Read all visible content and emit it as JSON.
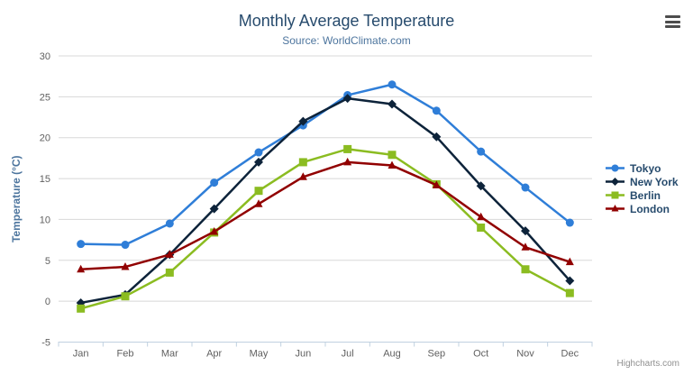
{
  "export_menu": {
    "tooltip": "Chart context menu"
  },
  "credits": {
    "label": "Highcharts.com"
  },
  "colors": {
    "title": "#274b6d",
    "subtitle": "#4d759e",
    "axis_title": "#4d759e",
    "axis_labels": "#606060",
    "grid_line": "#d8d8d8",
    "axis_line": "#c0d0e0",
    "legend_text": "#274b6d",
    "credits_text": "#909090",
    "export_icon": "#4d4d4d"
  },
  "chart_data": {
    "type": "line",
    "title": "Monthly Average Temperature",
    "subtitle": "Source: WorldClimate.com",
    "xlabel": "",
    "ylabel": "Temperature (°C)",
    "categories": [
      "Jan",
      "Feb",
      "Mar",
      "Apr",
      "May",
      "Jun",
      "Jul",
      "Aug",
      "Sep",
      "Oct",
      "Nov",
      "Dec"
    ],
    "ylim": [
      -5,
      30
    ],
    "yticks": [
      -5,
      0,
      5,
      10,
      15,
      20,
      25,
      30
    ],
    "grid": true,
    "legend_position": "right",
    "series": [
      {
        "name": "Tokyo",
        "color": "#2f7ed8",
        "marker": "circle",
        "values": [
          7.0,
          6.9,
          9.5,
          14.5,
          18.2,
          21.5,
          25.2,
          26.5,
          23.3,
          18.3,
          13.9,
          9.6
        ]
      },
      {
        "name": "New York",
        "color": "#0d233a",
        "marker": "diamond",
        "values": [
          -0.2,
          0.8,
          5.7,
          11.3,
          17.0,
          22.0,
          24.8,
          24.1,
          20.1,
          14.1,
          8.6,
          2.5
        ]
      },
      {
        "name": "Berlin",
        "color": "#8bbc21",
        "marker": "square",
        "values": [
          -0.9,
          0.6,
          3.5,
          8.4,
          13.5,
          17.0,
          18.6,
          17.9,
          14.3,
          9.0,
          3.9,
          1.0
        ]
      },
      {
        "name": "London",
        "color": "#910000",
        "marker": "triangle",
        "values": [
          3.9,
          4.2,
          5.7,
          8.5,
          11.9,
          15.2,
          17.0,
          16.6,
          14.2,
          10.3,
          6.6,
          4.8
        ]
      }
    ]
  }
}
